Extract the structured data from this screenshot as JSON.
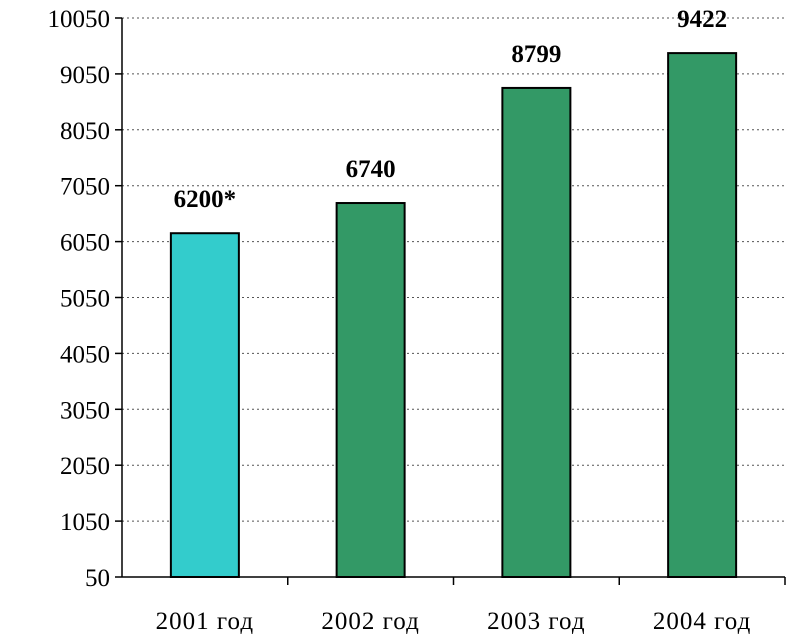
{
  "chart_data": {
    "type": "bar",
    "categories": [
      "2001 год",
      "2002 год",
      "2003 год",
      "2004 год"
    ],
    "values": [
      6200,
      6740,
      8799,
      9422
    ],
    "data_labels": [
      "6200*",
      "6740",
      "8799",
      "9422"
    ],
    "bar_colors": [
      "#33CCCC",
      "#339966",
      "#339966",
      "#339966"
    ],
    "bar_border_color": "#000000",
    "yticks": [
      50,
      1050,
      2050,
      3050,
      4050,
      5050,
      6050,
      7050,
      8050,
      9050,
      10050
    ],
    "ylim": [
      50,
      10050
    ],
    "grid": true,
    "grid_style": "dotted",
    "title": "",
    "xlabel": "",
    "ylabel": ""
  }
}
